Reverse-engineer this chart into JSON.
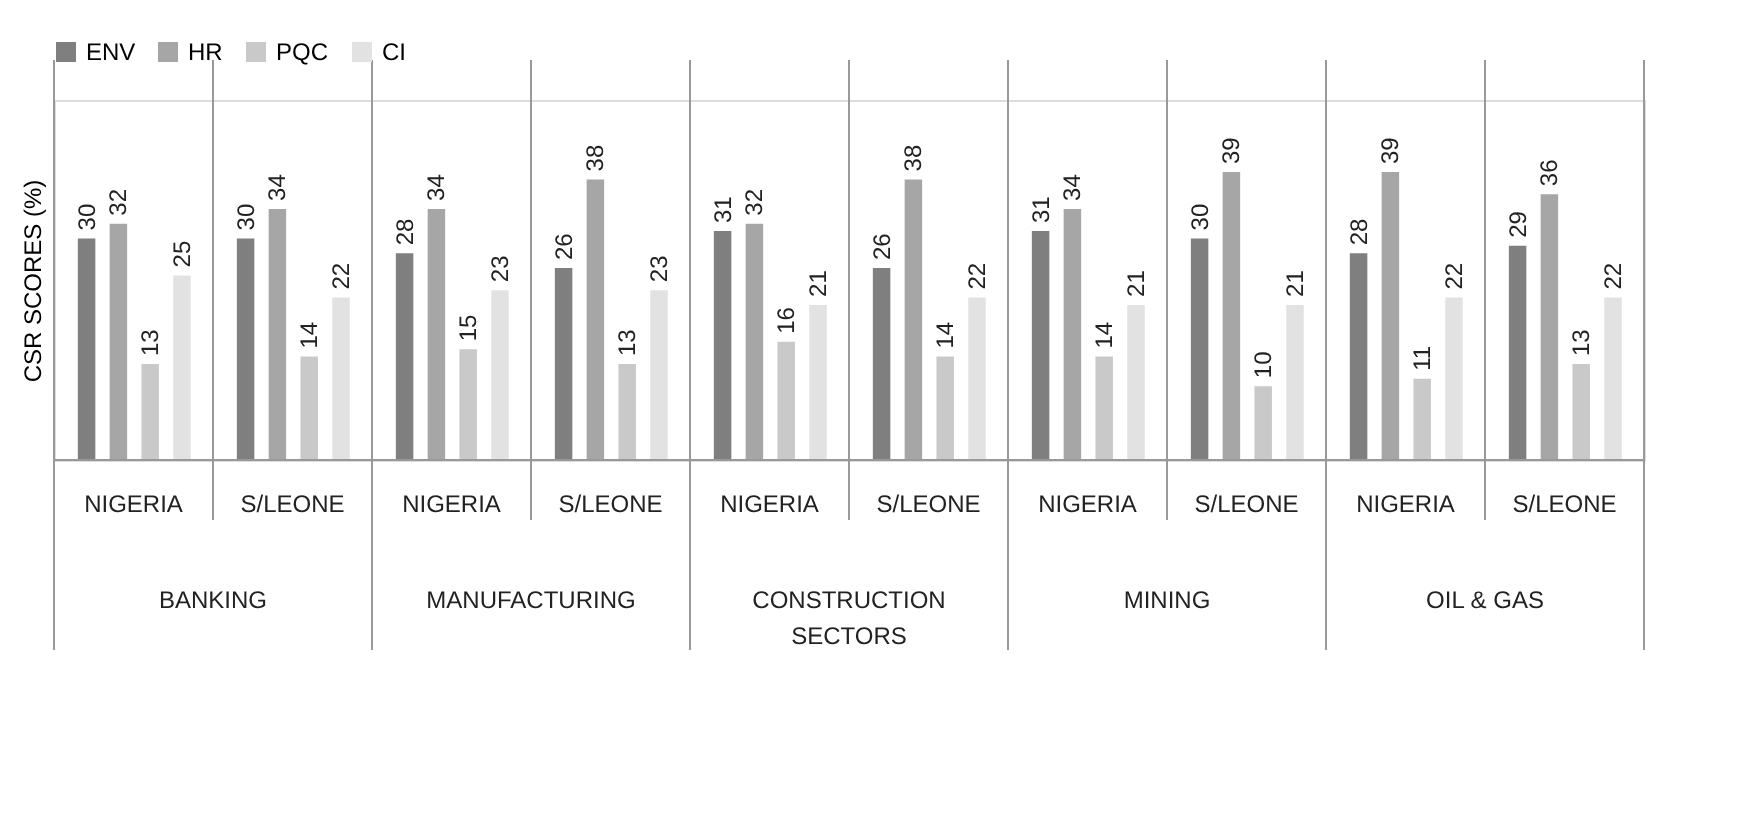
{
  "chart_data": {
    "type": "bar",
    "ylabel": "CSR SCORES (%)",
    "xlabel": "SECTORS",
    "categories": [
      "NIGERIA",
      "S/LEONE",
      "NIGERIA",
      "S/LEONE",
      "NIGERIA",
      "S/LEONE",
      "NIGERIA",
      "S/LEONE",
      "NIGERIA",
      "S/LEONE"
    ],
    "annotations": [
      "BANKING",
      "MANUFACTURING",
      "CONSTRUCTION",
      "MINING",
      "OIL & GAS"
    ],
    "series": [
      {
        "name": "ENV",
        "color": "#7f7f7f",
        "values": [
          30,
          30,
          28,
          26,
          31,
          26,
          31,
          30,
          28,
          29
        ]
      },
      {
        "name": "HR",
        "color": "#a6a6a6",
        "values": [
          32,
          34,
          34,
          38,
          32,
          38,
          34,
          39,
          39,
          36
        ]
      },
      {
        "name": "PQC",
        "color": "#c9c9c9",
        "values": [
          13,
          14,
          15,
          13,
          16,
          14,
          14,
          10,
          11,
          13
        ]
      },
      {
        "name": "CI",
        "color": "#e2e2e2",
        "values": [
          25,
          22,
          23,
          23,
          21,
          22,
          21,
          21,
          22,
          22
        ]
      }
    ],
    "data_labels": true,
    "legend": "top",
    "grid": false,
    "tick_labels": "x"
  }
}
